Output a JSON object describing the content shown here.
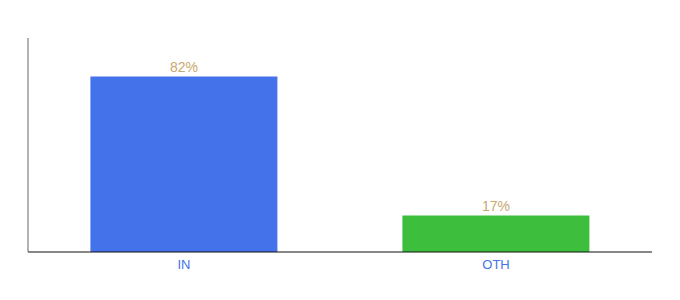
{
  "chart_data": {
    "type": "bar",
    "categories": [
      "IN",
      "OTH"
    ],
    "values": [
      82,
      17
    ],
    "value_labels": [
      "82%",
      "17%"
    ],
    "colors": [
      "#4472EA",
      "#3DBF3D"
    ],
    "ylim": [
      0,
      100
    ],
    "data_labels": true,
    "tick_labels": "x"
  }
}
